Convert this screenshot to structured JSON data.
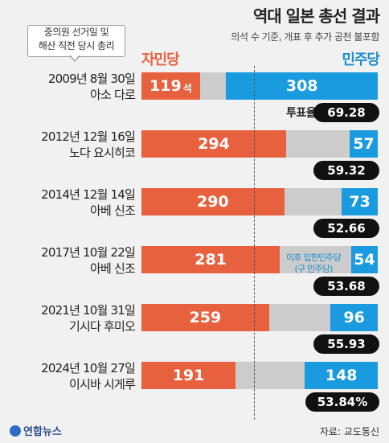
{
  "header": {
    "title": "역대 일본 총선 결과",
    "subtitle": "의석 수 기준, 개표 후 추가 공천 불포함"
  },
  "callout": {
    "line1": "중의원 선거일 및",
    "line2": "해산 직전 당시 총리"
  },
  "legend": {
    "ldp": "자민당",
    "cdp": "민주당"
  },
  "colors": {
    "ldp": "#e8613f",
    "cdp": "#1a9be0",
    "other": "#cccccc",
    "turnout_bg": "#111111"
  },
  "turnout_label": "투표율",
  "seat_unit": "석",
  "note": {
    "line1": "이후 입헌민주당",
    "line2": "(구 민주당)"
  },
  "chart_data": {
    "type": "bar",
    "orientation": "horizontal-stacked",
    "total_seats_scale": 480,
    "series_names": [
      "자민당",
      "민주당"
    ],
    "rows": [
      {
        "date": "2009년 8월 30일",
        "pm": "아소 다로",
        "ldp": 119,
        "cdp": 308,
        "turnout": "69.28"
      },
      {
        "date": "2012년 12월 16일",
        "pm": "노다 요시히코",
        "ldp": 294,
        "cdp": 57,
        "turnout": "59.32"
      },
      {
        "date": "2014년 12월 14일",
        "pm": "아베 신조",
        "ldp": 290,
        "cdp": 73,
        "turnout": "52.66"
      },
      {
        "date": "2017년 10월 22일",
        "pm": "아베 신조",
        "ldp": 281,
        "cdp": 54,
        "turnout": "53.68"
      },
      {
        "date": "2021년 10월 31일",
        "pm": "기시다 후미오",
        "ldp": 259,
        "cdp": 96,
        "turnout": "55.93"
      },
      {
        "date": "2024년 10월 27일",
        "pm": "이시바 시게루",
        "ldp": 191,
        "cdp": 148,
        "turnout": "53.84%"
      }
    ]
  },
  "footer": {
    "logo": "연합뉴스",
    "source": "자료: 교도통신"
  }
}
